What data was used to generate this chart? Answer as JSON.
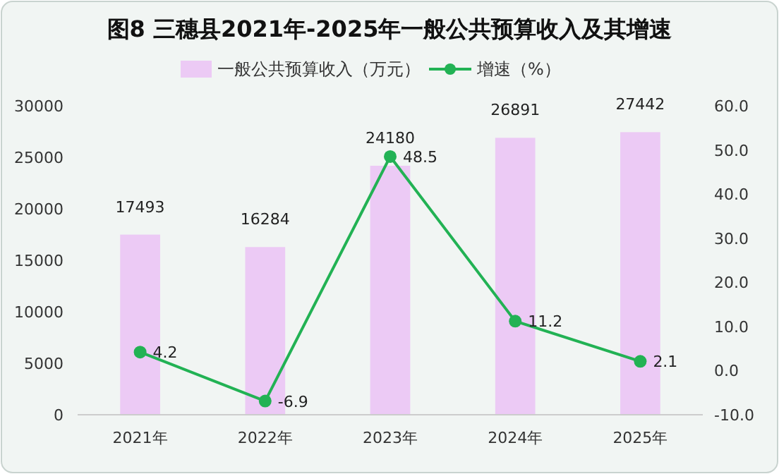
{
  "chart_data": {
    "type": "bar",
    "title": "图8 三穗县2021年-2025年一般公共预算收入及其增速",
    "categories": [
      "2021年",
      "2022年",
      "2023年",
      "2024年",
      "2025年"
    ],
    "series": [
      {
        "name": "一般公共预算收入（万元）",
        "color": "#eccaf5",
        "values": [
          17493,
          16284,
          24180,
          26891,
          27442
        ]
      },
      {
        "name": "增速（%）",
        "type": "line",
        "axis": "y2",
        "color": "#22b254",
        "values": [
          4.2,
          -6.9,
          48.5,
          11.2,
          2.1
        ]
      }
    ],
    "ylim": [
      0,
      30000
    ],
    "yticks": [
      0,
      5000,
      10000,
      15000,
      20000,
      25000,
      30000
    ],
    "y2lim": [
      -10,
      60
    ],
    "y2ticks": [
      {
        "value": -10,
        "label": "-10.0"
      },
      {
        "value": 0,
        "label": "0.0"
      },
      {
        "value": 10,
        "label": "10.0"
      },
      {
        "value": 20,
        "label": "20.0"
      },
      {
        "value": 30,
        "label": "30.0"
      },
      {
        "value": 40,
        "label": "40.0"
      },
      {
        "value": 50,
        "label": "50.0"
      },
      {
        "value": 60,
        "label": "60.0"
      }
    ],
    "data_labels": true,
    "legend": "top",
    "marker": "circle",
    "grid": false
  }
}
